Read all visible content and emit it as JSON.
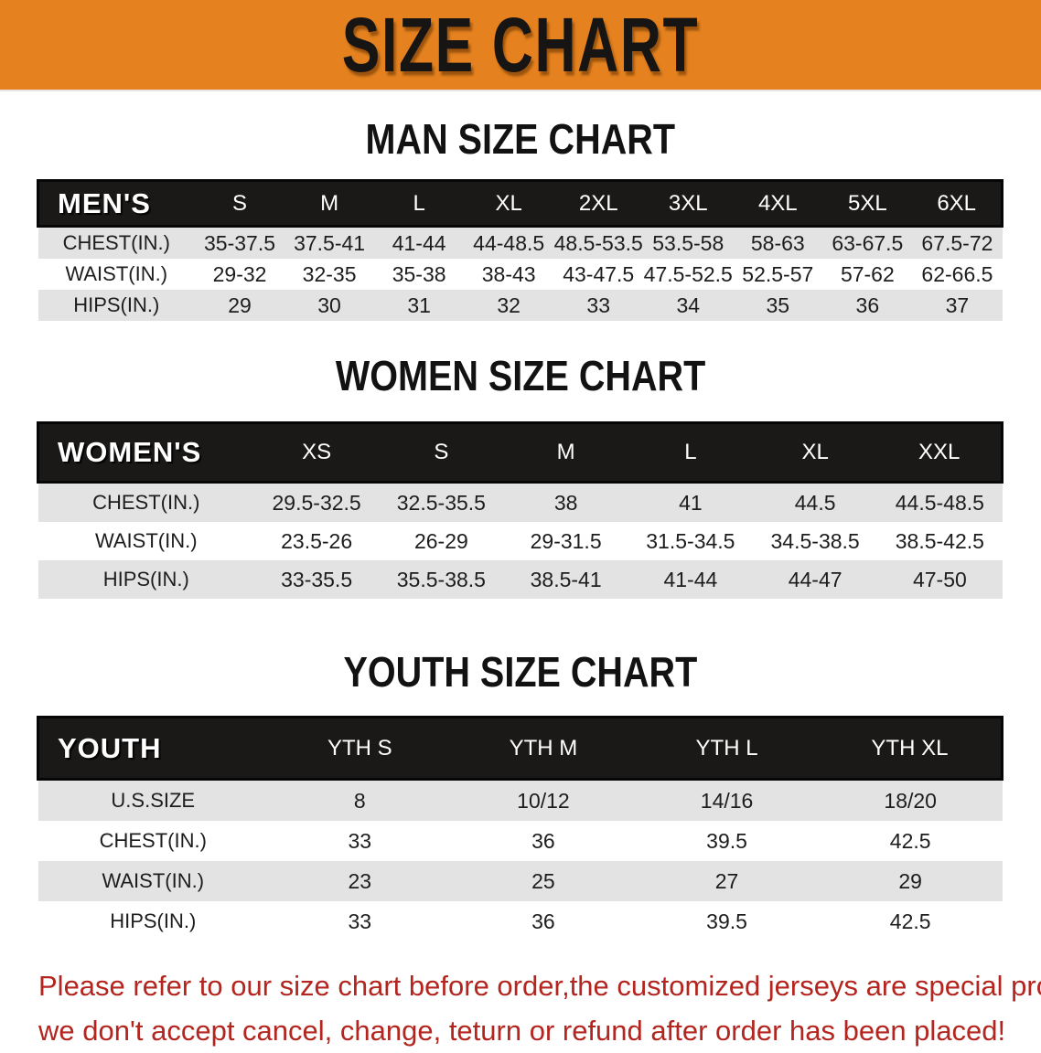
{
  "banner": {
    "title": "SIZE CHART"
  },
  "colors": {
    "banner_bg": "#E5821F",
    "header_bar_bg": "#1B1917",
    "row_alt_bg": "#E3E3E3",
    "disclaimer_red": "#B3251E"
  },
  "sections": {
    "men": {
      "title": "MAN SIZE CHART",
      "table": {
        "header": [
          "MEN'S",
          "S",
          "M",
          "L",
          "XL",
          "2XL",
          "3XL",
          "4XL",
          "5XL",
          "6XL"
        ],
        "rows": [
          [
            "CHEST(IN.)",
            "35-37.5",
            "37.5-41",
            "41-44",
            "44-48.5",
            "48.5-53.5",
            "53.5-58",
            "58-63",
            "63-67.5",
            "67.5-72"
          ],
          [
            "WAIST(IN.)",
            "29-32",
            "32-35",
            "35-38",
            "38-43",
            "43-47.5",
            "47.5-52.5",
            "52.5-57",
            "57-62",
            "62-66.5"
          ],
          [
            "HIPS(IN.)",
            "29",
            "30",
            "31",
            "32",
            "33",
            "34",
            "35",
            "36",
            "37"
          ]
        ]
      }
    },
    "women": {
      "title": "WOMEN SIZE CHART",
      "table": {
        "header": [
          "WOMEN'S",
          "XS",
          "S",
          "M",
          "L",
          "XL",
          "XXL"
        ],
        "rows": [
          [
            "CHEST(IN.)",
            "29.5-32.5",
            "32.5-35.5",
            "38",
            "41",
            "44.5",
            "44.5-48.5"
          ],
          [
            "WAIST(IN.)",
            "23.5-26",
            "26-29",
            "29-31.5",
            "31.5-34.5",
            "34.5-38.5",
            "38.5-42.5"
          ],
          [
            "HIPS(IN.)",
            "33-35.5",
            "35.5-38.5",
            "38.5-41",
            "41-44",
            "44-47",
            "47-50"
          ]
        ]
      }
    },
    "youth": {
      "title": "YOUTH SIZE CHART",
      "table": {
        "header": [
          "YOUTH",
          "YTH S",
          "YTH M",
          "YTH L",
          "YTH XL"
        ],
        "rows": [
          [
            "U.S.SIZE",
            "8",
            "10/12",
            "14/16",
            "18/20"
          ],
          [
            "CHEST(IN.)",
            "33",
            "36",
            "39.5",
            "42.5"
          ],
          [
            "WAIST(IN.)",
            "23",
            "25",
            "27",
            "29"
          ],
          [
            "HIPS(IN.)",
            "33",
            "36",
            "39.5",
            "42.5"
          ]
        ]
      }
    }
  },
  "disclaimer": {
    "line1": "Please refer to our size chart before order,the customized jerseys are special products,",
    "line2": "we don't accept cancel, change, teturn or refund after order has been placed!"
  }
}
